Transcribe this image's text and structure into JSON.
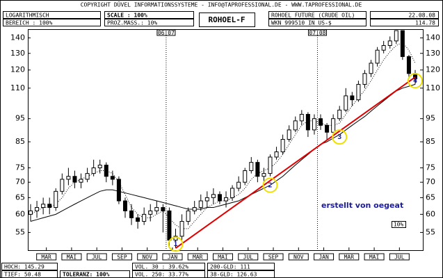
{
  "header": {
    "copyright": "COPYRIGHT DÜVEL INFORMATIONSSYSTEME - INFO@TAPROFESSIONAL.DE - WWW.TAPROFESSIONAL.DE",
    "mode": "LOGARITHMISCH",
    "range": "BEREICH : 100%",
    "scale": "SCALE : 100%",
    "proz": "PROZ.MASS.: 10%",
    "instrument": "ROHOEL FUTURE (CRUDE OIL)",
    "date": "22.08.08",
    "wkn": "WKN 999510 IN US-$",
    "last": "114.78"
  },
  "footer": {
    "high": "HOCH: 145.29",
    "low": "TIEF: 50.48",
    "tolerance": "TOLERANZ: 100%",
    "vol30": "VOL. 30 : 39.62%",
    "vol250": "VOL. 250: 33.77%",
    "gld200": "200-GLD: 111",
    "gld38": "38-GLD: 126.63"
  },
  "chart_data": {
    "type": "candlestick",
    "title": "ROHOEL-F",
    "log_scale": true,
    "ylim": [
      50.5,
      146
    ],
    "yticks": [
      55,
      60,
      65,
      70,
      75,
      85,
      95,
      110,
      120,
      130,
      140
    ],
    "categories": [
      "MAR",
      "MAI",
      "JUL",
      "SEP",
      "NOV",
      "JAN",
      "MAR",
      "MAI",
      "JUL",
      "SEP",
      "NOV",
      "JAN",
      "MAR",
      "MAI",
      "JUL"
    ],
    "year_markers": [
      "06|07",
      "07|08"
    ],
    "open": [
      60,
      61,
      62,
      63,
      62,
      67,
      71,
      72,
      70,
      71,
      73,
      75,
      76,
      72,
      71,
      64,
      61,
      59,
      58,
      60,
      61,
      62,
      61,
      53,
      54,
      58,
      61,
      62,
      64,
      65,
      66,
      64,
      65,
      68,
      70,
      74,
      77,
      72,
      73,
      79,
      81,
      86,
      90,
      94,
      97,
      90,
      95,
      92,
      89,
      95,
      99,
      106,
      104,
      112,
      118,
      124,
      132,
      135,
      138,
      145,
      128,
      118
    ],
    "high": [
      63,
      64,
      65,
      65,
      68,
      73,
      75,
      74,
      73,
      75,
      78,
      78,
      77,
      74,
      72,
      65,
      63,
      60,
      62,
      63,
      64,
      63,
      62,
      56,
      60,
      62,
      64,
      66,
      67,
      68,
      67,
      67,
      69,
      72,
      75,
      79,
      78,
      75,
      80,
      83,
      88,
      92,
      96,
      99,
      98,
      97,
      97,
      93,
      97,
      101,
      110,
      108,
      114,
      120,
      126,
      134,
      138,
      141,
      145,
      145,
      129,
      120
    ],
    "low": [
      58,
      59,
      60,
      60,
      61,
      66,
      69,
      68,
      68,
      70,
      72,
      73,
      70,
      69,
      63,
      59,
      57,
      56,
      57,
      58,
      60,
      55,
      51,
      51,
      53,
      57,
      60,
      61,
      62,
      63,
      63,
      62,
      64,
      67,
      69,
      73,
      70,
      70,
      72,
      78,
      80,
      85,
      89,
      92,
      87,
      88,
      90,
      86,
      88,
      94,
      98,
      101,
      103,
      110,
      116,
      122,
      130,
      133,
      136,
      126,
      116,
      112
    ],
    "close": [
      61,
      62,
      63,
      62,
      67,
      71,
      72,
      70,
      71,
      73,
      75,
      76,
      72,
      71,
      64,
      61,
      59,
      58,
      60,
      61,
      62,
      61,
      53,
      54,
      58,
      61,
      62,
      64,
      65,
      66,
      64,
      65,
      68,
      70,
      74,
      77,
      72,
      73,
      79,
      81,
      86,
      90,
      94,
      97,
      90,
      95,
      92,
      89,
      95,
      99,
      106,
      104,
      112,
      118,
      124,
      132,
      135,
      138,
      145,
      128,
      118,
      115
    ],
    "moving_averages": [
      {
        "style": "dotted",
        "values": [
          60,
          61,
          62,
          62,
          63,
          65,
          68,
          70,
          71,
          72,
          73,
          74,
          74,
          73,
          70,
          66,
          62,
          60,
          59,
          59,
          60,
          61,
          59,
          57,
          56,
          56,
          58,
          60,
          62,
          63,
          64,
          64,
          65,
          66,
          68,
          71,
          73,
          74,
          75,
          77,
          80,
          84,
          88,
          92,
          94,
          94,
          93,
          92,
          92,
          93,
          97,
          101,
          105,
          109,
          114,
          120,
          126,
          131,
          135,
          137,
          132,
          124
        ]
      },
      {
        "style": "solid",
        "values": [
          58,
          58.5,
          59,
          59.5,
          60,
          61,
          62,
          63,
          64,
          65,
          66,
          67,
          67.5,
          67.5,
          67,
          66.5,
          66,
          65.5,
          65,
          64.5,
          64,
          63.5,
          63,
          62.5,
          62,
          61.5,
          61.5,
          61.5,
          62,
          62,
          62.5,
          63,
          63.5,
          64,
          65,
          66,
          67,
          68,
          69,
          70.5,
          72,
          74,
          76,
          78,
          80,
          82,
          84,
          85,
          86.5,
          88,
          90,
          92,
          94,
          96,
          98.5,
          101,
          103.5,
          106,
          108.5,
          110,
          111,
          112
        ]
      }
    ],
    "trendline": {
      "color": "#e00000",
      "x": [
        23,
        61
      ],
      "values": [
        51,
        116
      ]
    },
    "markers": [
      {
        "label": "1",
        "x": 23,
        "value": 52
      },
      {
        "label": "2",
        "x": 38,
        "value": 69
      },
      {
        "label": "3",
        "x": 49,
        "value": 87
      },
      {
        "label": "4",
        "x": 61,
        "value": 114
      }
    ],
    "marker_color": "#f0e000",
    "annotation": "erstellt von oegeat",
    "scale_note": "10%"
  }
}
